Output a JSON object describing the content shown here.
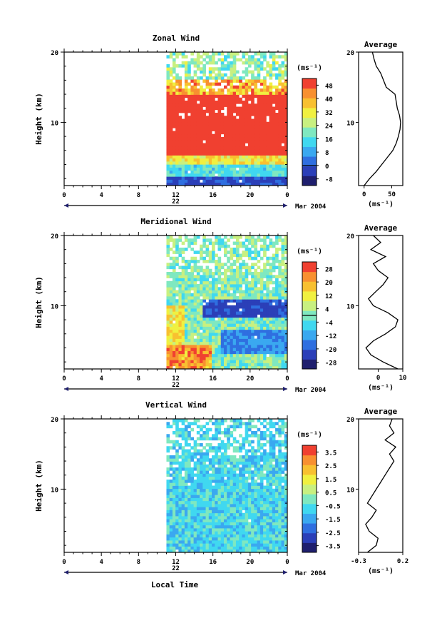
{
  "figure": {
    "date_label": "Mar 2004",
    "xlabel": "Local Time",
    "unit_label": "(ms⁻¹)"
  },
  "chart_data": [
    {
      "type": "heatmap",
      "title": "Zonal Wind",
      "ylabel": "Height (km)",
      "xlim": [
        0,
        24
      ],
      "ylim": [
        1,
        20
      ],
      "x_ticks": [
        "0",
        "4",
        "8",
        "12",
        "16",
        "20",
        "0"
      ],
      "day_label": "22",
      "y_ticks": [
        "20",
        "10"
      ],
      "data_start_hour": 11,
      "colorbar": {
        "title": "(ms⁻¹)",
        "labels": [
          "48",
          "40",
          "32",
          "24",
          "16",
          "8",
          "0",
          "-8"
        ],
        "min": -12,
        "max": 52,
        "zero_line": 0,
        "colors": [
          "#1f1f6e",
          "#2b3fb8",
          "#2f6fe0",
          "#3aa8f0",
          "#40d8f0",
          "#7fe8c0",
          "#c8f080",
          "#f0f040",
          "#f8c030",
          "#f89030",
          "#f04030"
        ]
      },
      "average": {
        "title": "Average",
        "xlabel": "(ms⁻¹)",
        "x_ticks": [
          "0",
          "50"
        ],
        "xlim": [
          -10,
          70
        ],
        "height_km": [
          1,
          2,
          3,
          4,
          5,
          6,
          7,
          8,
          9,
          10,
          11,
          12,
          13,
          14,
          15,
          16,
          17,
          18,
          19,
          20
        ],
        "values": [
          0,
          10,
          22,
          32,
          42,
          52,
          58,
          62,
          65,
          66,
          64,
          60,
          58,
          56,
          40,
          35,
          30,
          22,
          18,
          15
        ]
      }
    },
    {
      "type": "heatmap",
      "title": "Meridional Wind",
      "ylabel": "Height (km)",
      "xlim": [
        0,
        24
      ],
      "ylim": [
        1,
        20
      ],
      "x_ticks": [
        "0",
        "4",
        "8",
        "12",
        "16",
        "20",
        "0"
      ],
      "day_label": "22",
      "y_ticks": [
        "20",
        "10"
      ],
      "data_start_hour": 11,
      "colorbar": {
        "title": "(ms⁻¹)",
        "labels": [
          "28",
          "20",
          "12",
          "4",
          "-4",
          "-12",
          "-20",
          "-28"
        ],
        "min": -32,
        "max": 32,
        "zero_line": 0,
        "colors": [
          "#1f1f6e",
          "#2b3fb8",
          "#2f6fe0",
          "#3aa8f0",
          "#40d8f0",
          "#7fe8c0",
          "#c8f080",
          "#f0f040",
          "#f8c030",
          "#f89030",
          "#f04030"
        ]
      },
      "average": {
        "title": "Average",
        "xlabel": "(ms⁻¹)",
        "x_ticks": [
          "0",
          "10"
        ],
        "xlim": [
          -8,
          10
        ],
        "height_km": [
          1,
          2,
          3,
          4,
          5,
          6,
          7,
          8,
          9,
          10,
          11,
          12,
          13,
          14,
          15,
          16,
          17,
          18,
          19,
          20
        ],
        "values": [
          8,
          2,
          -3,
          -5,
          -2,
          3,
          7,
          8,
          4,
          -2,
          -4,
          -1,
          2,
          4,
          0,
          -2,
          3,
          -3,
          1,
          -2
        ]
      }
    },
    {
      "type": "heatmap",
      "title": "Vertical Wind",
      "ylabel": "Height (km)",
      "xlim": [
        0,
        24
      ],
      "ylim": [
        1,
        20
      ],
      "x_ticks": [
        "0",
        "4",
        "8",
        "12",
        "16",
        "20",
        "0"
      ],
      "day_label": "22",
      "y_ticks": [
        "20",
        "10"
      ],
      "data_start_hour": 11,
      "colorbar": {
        "title": "(ms⁻¹)",
        "labels": [
          "3.5",
          "2.5",
          "1.5",
          "0.5",
          "-0.5",
          "-1.5",
          "-2.5",
          "-3.5"
        ],
        "min": -4,
        "max": 4,
        "zero_line": null,
        "colors": [
          "#1f1f6e",
          "#2b3fb8",
          "#2f6fe0",
          "#3aa8f0",
          "#40d8f0",
          "#7fe8c0",
          "#c8f080",
          "#f0f040",
          "#f8c030",
          "#f89030",
          "#f04030"
        ]
      },
      "average": {
        "title": "Average",
        "xlabel": "(ms⁻¹)",
        "x_ticks": [
          "-0.3",
          "0.2"
        ],
        "xlim": [
          -0.3,
          0.2
        ],
        "height_km": [
          1,
          2,
          3,
          4,
          5,
          6,
          7,
          8,
          9,
          10,
          11,
          12,
          13,
          14,
          15,
          16,
          17,
          18,
          19,
          20
        ],
        "values": [
          -0.2,
          -0.1,
          -0.08,
          -0.18,
          -0.22,
          -0.15,
          -0.1,
          -0.2,
          -0.15,
          -0.1,
          -0.05,
          0.0,
          0.05,
          0.1,
          0.05,
          0.12,
          0.0,
          0.1,
          0.05,
          0.08
        ]
      }
    }
  ]
}
